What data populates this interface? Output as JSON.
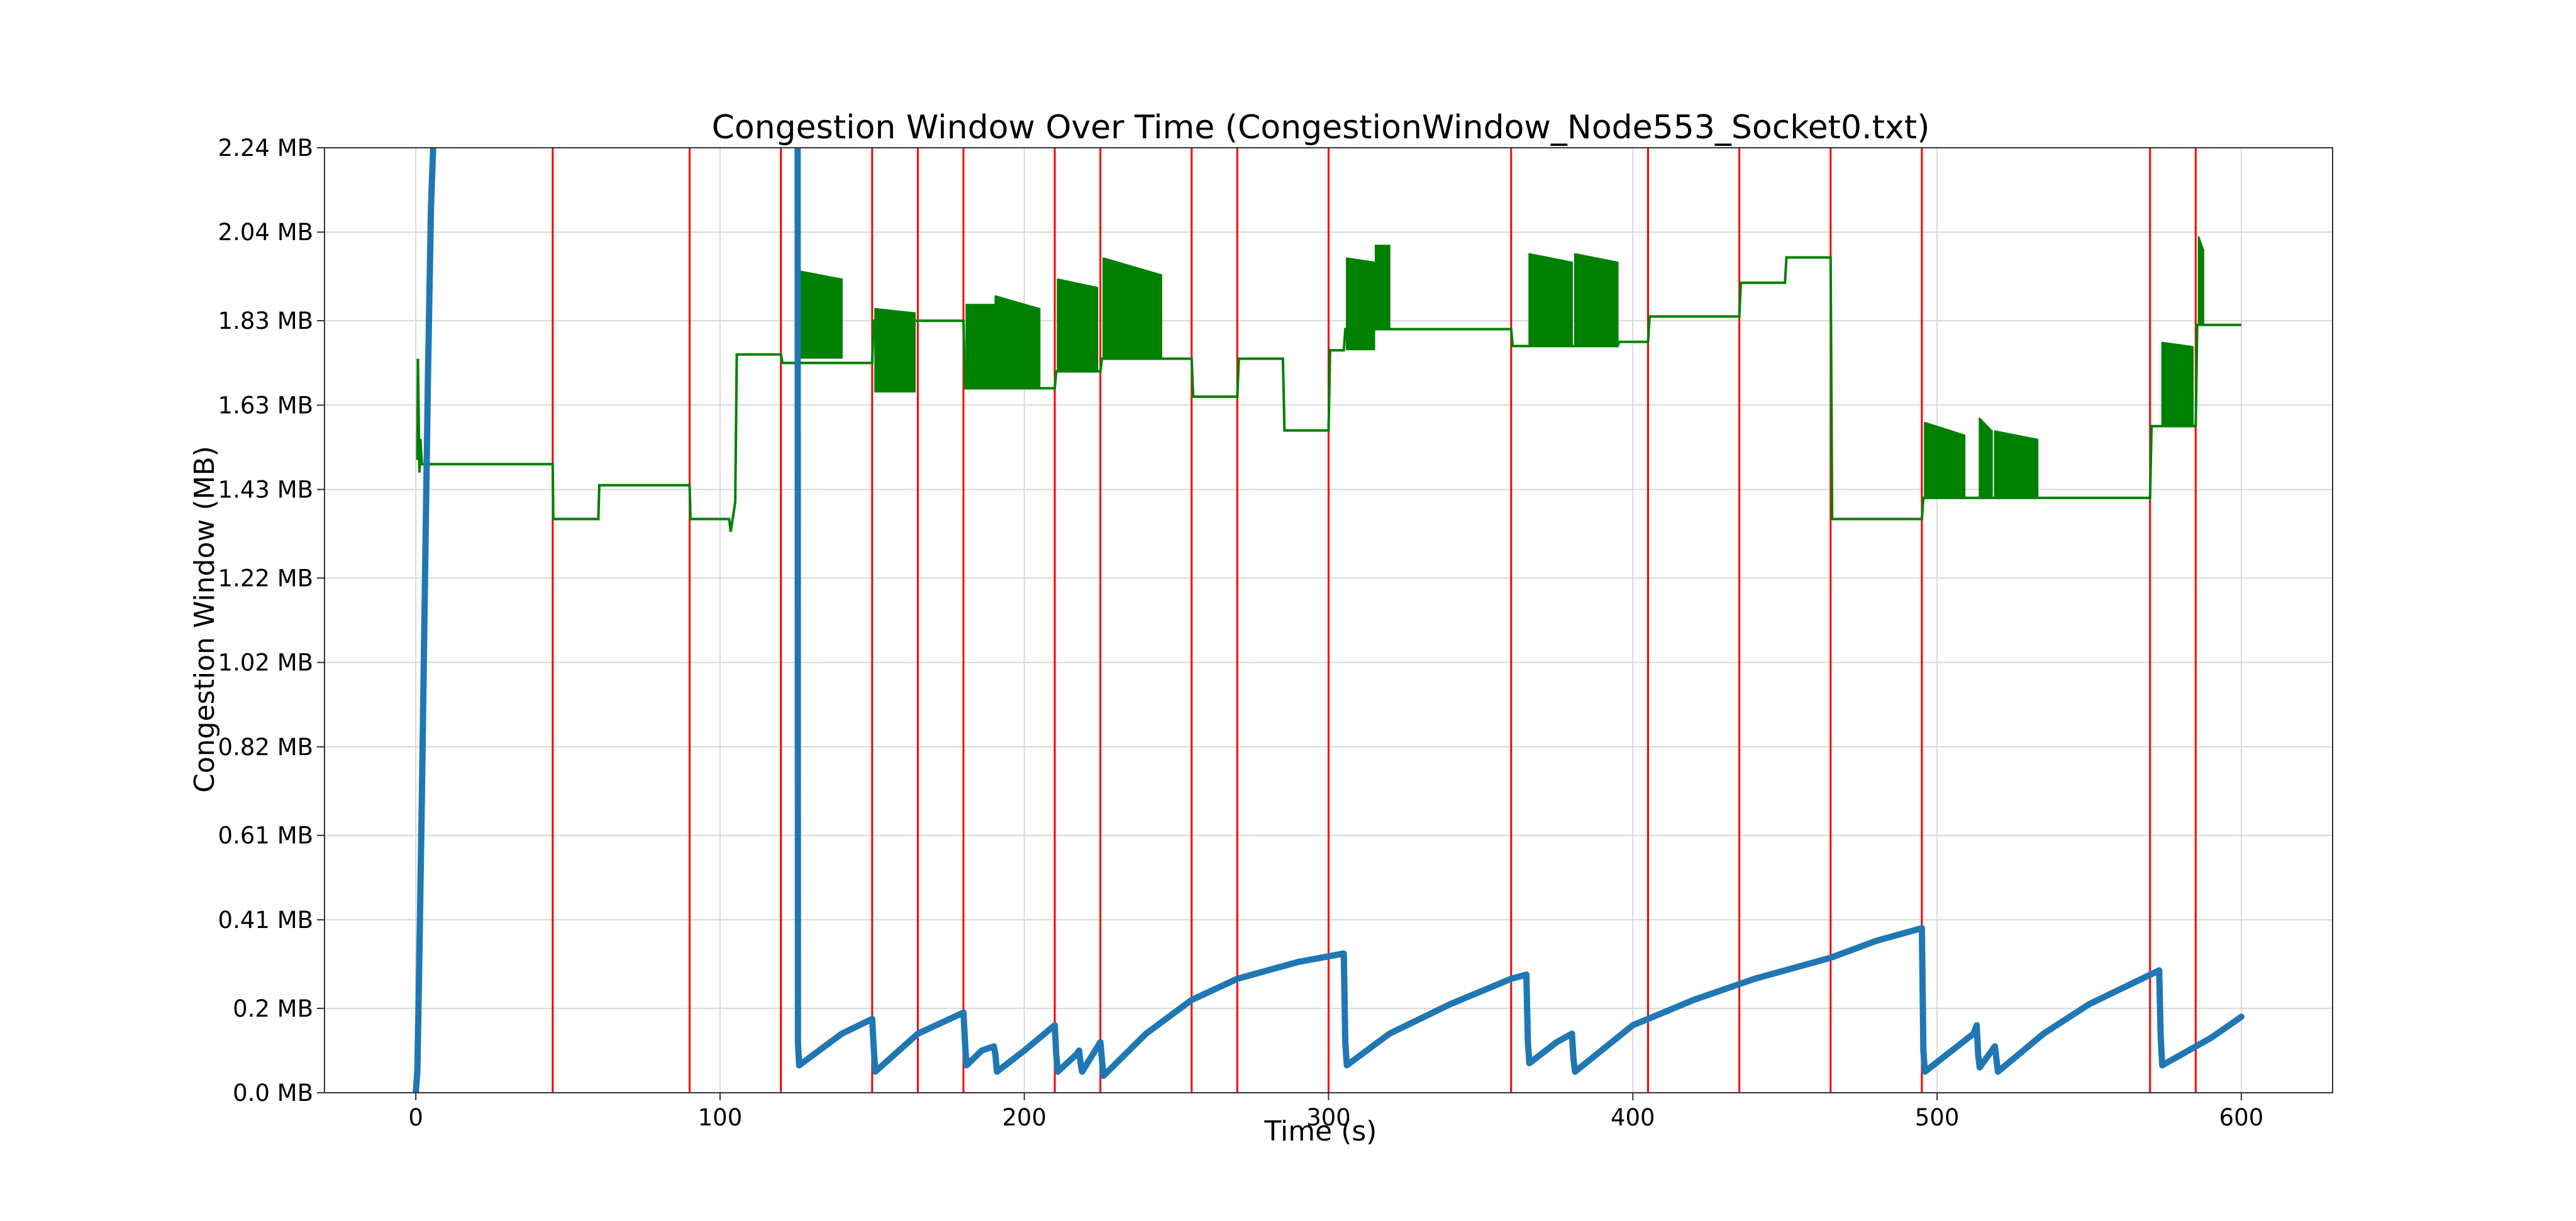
{
  "chart_data": {
    "type": "line",
    "title": "Congestion Window Over Time (CongestionWindow_Node553_Socket0.txt)",
    "xlabel": "Time (s)",
    "ylabel": "Congestion Window (MB)",
    "xlim": [
      -30,
      630
    ],
    "ylim": [
      0,
      2.24
    ],
    "x_ticks": [
      0,
      100,
      200,
      300,
      400,
      500,
      600
    ],
    "y_ticks": [
      0.0,
      0.2,
      0.41,
      0.61,
      0.82,
      1.02,
      1.22,
      1.43,
      1.63,
      1.83,
      2.04,
      2.24
    ],
    "y_tick_labels": [
      "0.0 MB",
      "0.2 MB",
      "0.41 MB",
      "0.61 MB",
      "0.82 MB",
      "1.02 MB",
      "1.22 MB",
      "1.43 MB",
      "1.63 MB",
      "1.83 MB",
      "2.04 MB",
      "2.24 MB"
    ],
    "grid": true,
    "colors": {
      "cwnd": "#1f77b4",
      "threshold": "#008000",
      "event": "#ff0000",
      "grid": "#d9d9d9"
    },
    "vertical_markers": [
      45,
      90,
      120,
      150,
      165,
      180,
      210,
      225,
      255,
      270,
      300,
      360,
      405,
      435,
      465,
      495,
      570,
      585
    ],
    "series": [
      {
        "type": "line",
        "x": [
          0,
          0.5,
          1,
          2,
          3,
          4,
          5,
          6,
          125.5,
          125.6,
          126,
          140,
          150,
          150.5,
          151,
          165,
          180,
          180.5,
          181,
          186,
          190,
          190.5,
          191,
          200,
          210,
          210.5,
          211,
          217,
          218,
          218.5,
          219,
          225,
          225.5,
          226,
          240,
          255,
          270,
          290,
          305,
          305.5,
          306,
          320,
          340,
          360,
          365,
          365.5,
          366,
          375,
          380,
          380.5,
          381,
          400,
          420,
          440,
          465,
          480,
          495,
          495.5,
          496,
          512,
          513,
          513.5,
          514,
          518,
          519,
          519.5,
          520,
          535,
          550,
          573,
          573.5,
          574,
          590,
          600
        ],
        "y": [
          0.0,
          0.05,
          0.25,
          0.7,
          1.2,
          1.7,
          2.1,
          2.3,
          2.3,
          0.12,
          0.065,
          0.14,
          0.175,
          0.11,
          0.05,
          0.14,
          0.19,
          0.12,
          0.065,
          0.1,
          0.11,
          0.09,
          0.05,
          0.1,
          0.16,
          0.09,
          0.05,
          0.09,
          0.1,
          0.07,
          0.05,
          0.12,
          0.08,
          0.04,
          0.14,
          0.22,
          0.27,
          0.31,
          0.33,
          0.12,
          0.065,
          0.14,
          0.21,
          0.27,
          0.28,
          0.12,
          0.07,
          0.12,
          0.14,
          0.08,
          0.05,
          0.16,
          0.22,
          0.27,
          0.32,
          0.36,
          0.39,
          0.1,
          0.05,
          0.14,
          0.16,
          0.09,
          0.06,
          0.1,
          0.11,
          0.08,
          0.05,
          0.14,
          0.21,
          0.29,
          0.13,
          0.065,
          0.13,
          0.18
        ]
      },
      {
        "type": "step",
        "x": [
          0.5,
          0.7,
          1.2,
          1.5,
          2,
          45,
          45.2,
          60,
          60.3,
          90,
          90.3,
          103,
          103.5,
          105,
          105.5,
          120,
          120.5,
          150,
          150.5,
          165,
          165.5,
          180,
          180.5,
          210,
          210.5,
          225,
          225.5,
          255,
          255.5,
          270,
          270.5,
          285,
          285.5,
          300,
          300.5,
          305,
          305.5,
          360,
          360.5,
          395,
          395.5,
          405,
          405.5,
          435,
          435.5,
          450,
          450.5,
          465,
          465.5,
          495,
          495.5,
          570,
          570.5,
          585,
          585.5,
          600
        ],
        "y": [
          1.5,
          1.74,
          1.47,
          1.55,
          1.49,
          1.49,
          1.36,
          1.36,
          1.44,
          1.44,
          1.36,
          1.36,
          1.33,
          1.4,
          1.75,
          1.75,
          1.73,
          1.73,
          1.83,
          1.83,
          1.83,
          1.83,
          1.67,
          1.67,
          1.71,
          1.71,
          1.74,
          1.74,
          1.65,
          1.65,
          1.74,
          1.74,
          1.57,
          1.57,
          1.76,
          1.76,
          1.81,
          1.81,
          1.77,
          1.77,
          1.78,
          1.78,
          1.84,
          1.84,
          1.92,
          1.92,
          1.98,
          1.98,
          1.36,
          1.36,
          1.41,
          1.41,
          1.58,
          1.58,
          1.82,
          1.82
        ]
      },
      {
        "type": "oscillation",
        "bands": [
          {
            "x_start": 125.5,
            "x_end": 140,
            "y_low": 1.74,
            "y_high_start": 1.95,
            "y_high_end": 1.93
          },
          {
            "x_start": 151,
            "x_end": 164,
            "y_low": 1.66,
            "y_high_start": 1.86,
            "y_high_end": 1.85
          },
          {
            "x_start": 181,
            "x_end": 190,
            "y_low": 1.67,
            "y_high_start": 1.87,
            "y_high_end": 1.87
          },
          {
            "x_start": 190.5,
            "x_end": 205,
            "y_low": 1.67,
            "y_high_start": 1.89,
            "y_high_end": 1.86
          },
          {
            "x_start": 211,
            "x_end": 224,
            "y_low": 1.71,
            "y_high_start": 1.93,
            "y_high_end": 1.91
          },
          {
            "x_start": 226,
            "x_end": 245,
            "y_low": 1.74,
            "y_high_start": 1.98,
            "y_high_end": 1.94
          },
          {
            "x_start": 306,
            "x_end": 315,
            "y_low": 1.76,
            "y_high_start": 1.98,
            "y_high_end": 1.97
          },
          {
            "x_start": 315.5,
            "x_end": 320,
            "y_low": 1.81,
            "y_high_start": 2.01,
            "y_high_end": 2.01
          },
          {
            "x_start": 366,
            "x_end": 380,
            "y_low": 1.77,
            "y_high_start": 1.99,
            "y_high_end": 1.97
          },
          {
            "x_start": 381,
            "x_end": 395,
            "y_low": 1.77,
            "y_high_start": 1.99,
            "y_high_end": 1.97
          },
          {
            "x_start": 496,
            "x_end": 509,
            "y_low": 1.41,
            "y_high_start": 1.59,
            "y_high_end": 1.56
          },
          {
            "x_start": 514,
            "x_end": 518,
            "y_low": 1.41,
            "y_high_start": 1.6,
            "y_high_end": 1.57
          },
          {
            "x_start": 519,
            "x_end": 533,
            "y_low": 1.41,
            "y_high_start": 1.57,
            "y_high_end": 1.55
          },
          {
            "x_start": 574,
            "x_end": 584,
            "y_low": 1.58,
            "y_high_start": 1.78,
            "y_high_end": 1.77
          },
          {
            "x_start": 586,
            "x_end": 587.5,
            "y_low": 1.82,
            "y_high_start": 2.03,
            "y_high_end": 2.0
          }
        ]
      }
    ]
  }
}
